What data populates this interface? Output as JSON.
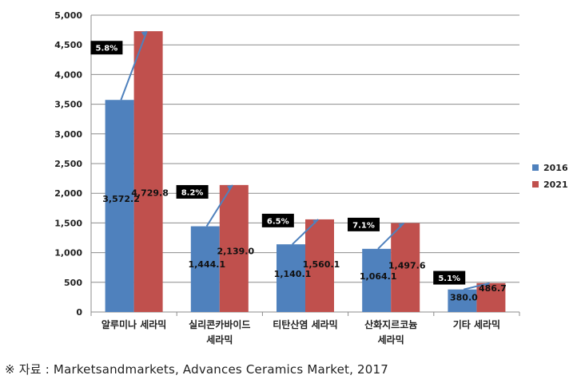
{
  "chart_data": {
    "type": "bar",
    "categories": [
      [
        "알루미나 세라믹"
      ],
      [
        "실리콘카바이드",
        "세라믹"
      ],
      [
        "티탄산염 세라믹"
      ],
      [
        "산화지르코늄",
        "세라믹"
      ],
      [
        "기타 세라믹"
      ]
    ],
    "series": [
      {
        "name": "2016",
        "color": "#4F81BD",
        "values": [
          3572.2,
          1444.1,
          1140.1,
          1064.1,
          380.0
        ],
        "labels": [
          "3,572.2",
          "1,444.1",
          "1,140.1",
          "1,064.1",
          "380.0"
        ]
      },
      {
        "name": "2021",
        "color": "#C0504D",
        "values": [
          4729.8,
          2139.0,
          1560.1,
          1497.6,
          486.7
        ],
        "labels": [
          "4,729.8",
          "2,139.0",
          "1,560.1",
          "1,497.6",
          "486.7"
        ]
      }
    ],
    "growth_rates": [
      "5.8%",
      "8.2%",
      "6.5%",
      "7.1%",
      "5.1%"
    ],
    "ylim": [
      0,
      5000
    ],
    "yticks": [
      0,
      500,
      1000,
      1500,
      2000,
      2500,
      3000,
      3500,
      4000,
      4500,
      5000
    ],
    "ytick_labels": [
      "0",
      "500",
      "1,000",
      "1,500",
      "2,000",
      "2,500",
      "3,000",
      "3,500",
      "4,000",
      "4,500",
      "5,000"
    ],
    "grid": true,
    "legend_position": "right"
  },
  "source_note": "※ 자료 : Marketsandmarkets, Advances Ceramics Market, 2017"
}
